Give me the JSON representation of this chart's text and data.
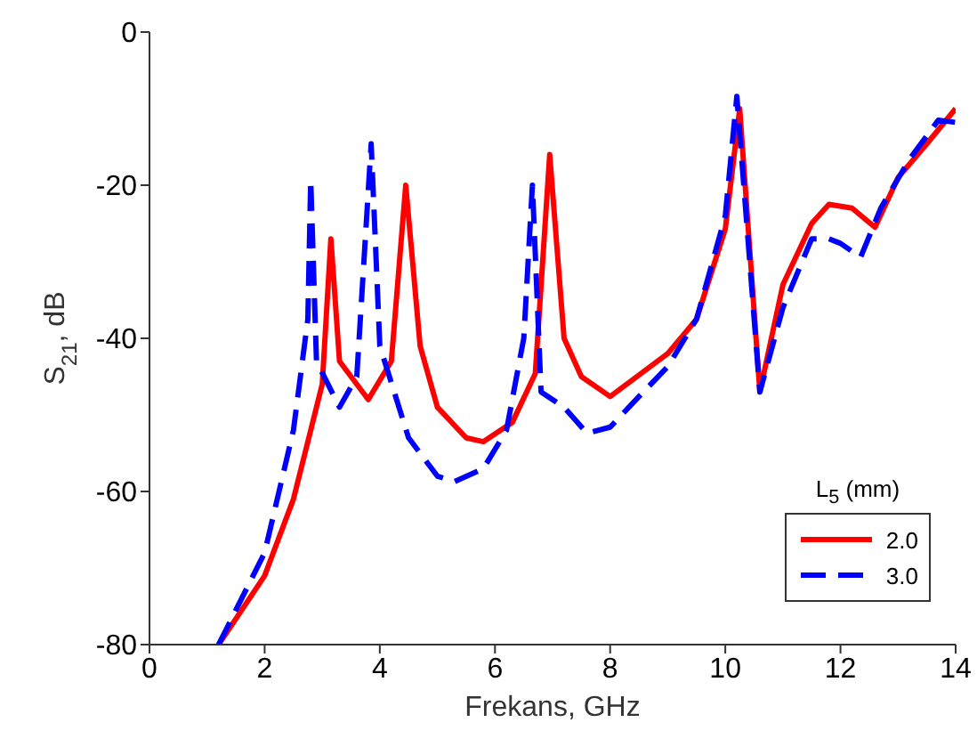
{
  "chart_data": {
    "type": "line",
    "xlabel": "Frekans, GHz",
    "ylabel": "S$_{21}$, dB",
    "legend_title": "L$_{5}$ (mm)",
    "legend": "bottom right",
    "grid": false,
    "marker": "none",
    "xlim": [
      0,
      14
    ],
    "ylim": [
      -80,
      0
    ],
    "xticks": [
      0,
      2,
      4,
      6,
      8,
      10,
      12,
      14
    ],
    "yticks": [
      -80,
      -60,
      -40,
      -20,
      0
    ],
    "series": [
      {
        "name": "2.0",
        "color": "#ff0000",
        "line_style": "solid",
        "x": [
          1.2,
          2,
          2.5,
          2.8,
          3,
          3.15,
          3.3,
          3.8,
          4.2,
          4.45,
          4.7,
          5,
          5.5,
          5.8,
          6.3,
          6.7,
          6.95,
          7.2,
          7.5,
          8,
          9,
          9.5,
          10,
          10.25,
          10.6,
          11,
          11.5,
          11.8,
          12.2,
          12.6,
          13,
          13.5,
          14
        ],
        "values": [
          -80,
          -71,
          -61,
          -52,
          -46,
          -27,
          -43,
          -48,
          -43,
          -20,
          -41,
          -49,
          -53,
          -53.5,
          -51,
          -44.6,
          -16,
          -40,
          -45,
          -47.6,
          -42,
          -37.5,
          -25.7,
          -10,
          -47,
          -33,
          -25,
          -22.5,
          -23,
          -25.5,
          -19,
          -14.6,
          -10
        ]
      },
      {
        "name": "3.0",
        "color": "#0000ff",
        "line_style": "dashed",
        "x": [
          1.2,
          2,
          2.5,
          2.75,
          2.8,
          2.9,
          3.3,
          3.6,
          3.85,
          4,
          4.5,
          5,
          5.3,
          5.8,
          6.2,
          6.5,
          6.65,
          6.8,
          7.2,
          7.6,
          8,
          8.5,
          9,
          9.5,
          10,
          10.2,
          10.6,
          11,
          11.5,
          11.8,
          12,
          12.35,
          12.7,
          13.2,
          13.7,
          14
        ],
        "values": [
          -80,
          -68,
          -52,
          -37.5,
          -19.3,
          -43,
          -49,
          -45,
          -14.6,
          -41,
          -53,
          -58,
          -58.7,
          -57,
          -52,
          -40,
          -20,
          -47,
          -49,
          -52.4,
          -51.6,
          -47.6,
          -43.7,
          -37.5,
          -24,
          -8.4,
          -47,
          -36,
          -27,
          -27,
          -27.6,
          -29.4,
          -23,
          -16.6,
          -11.5,
          -11.8
        ]
      }
    ]
  }
}
